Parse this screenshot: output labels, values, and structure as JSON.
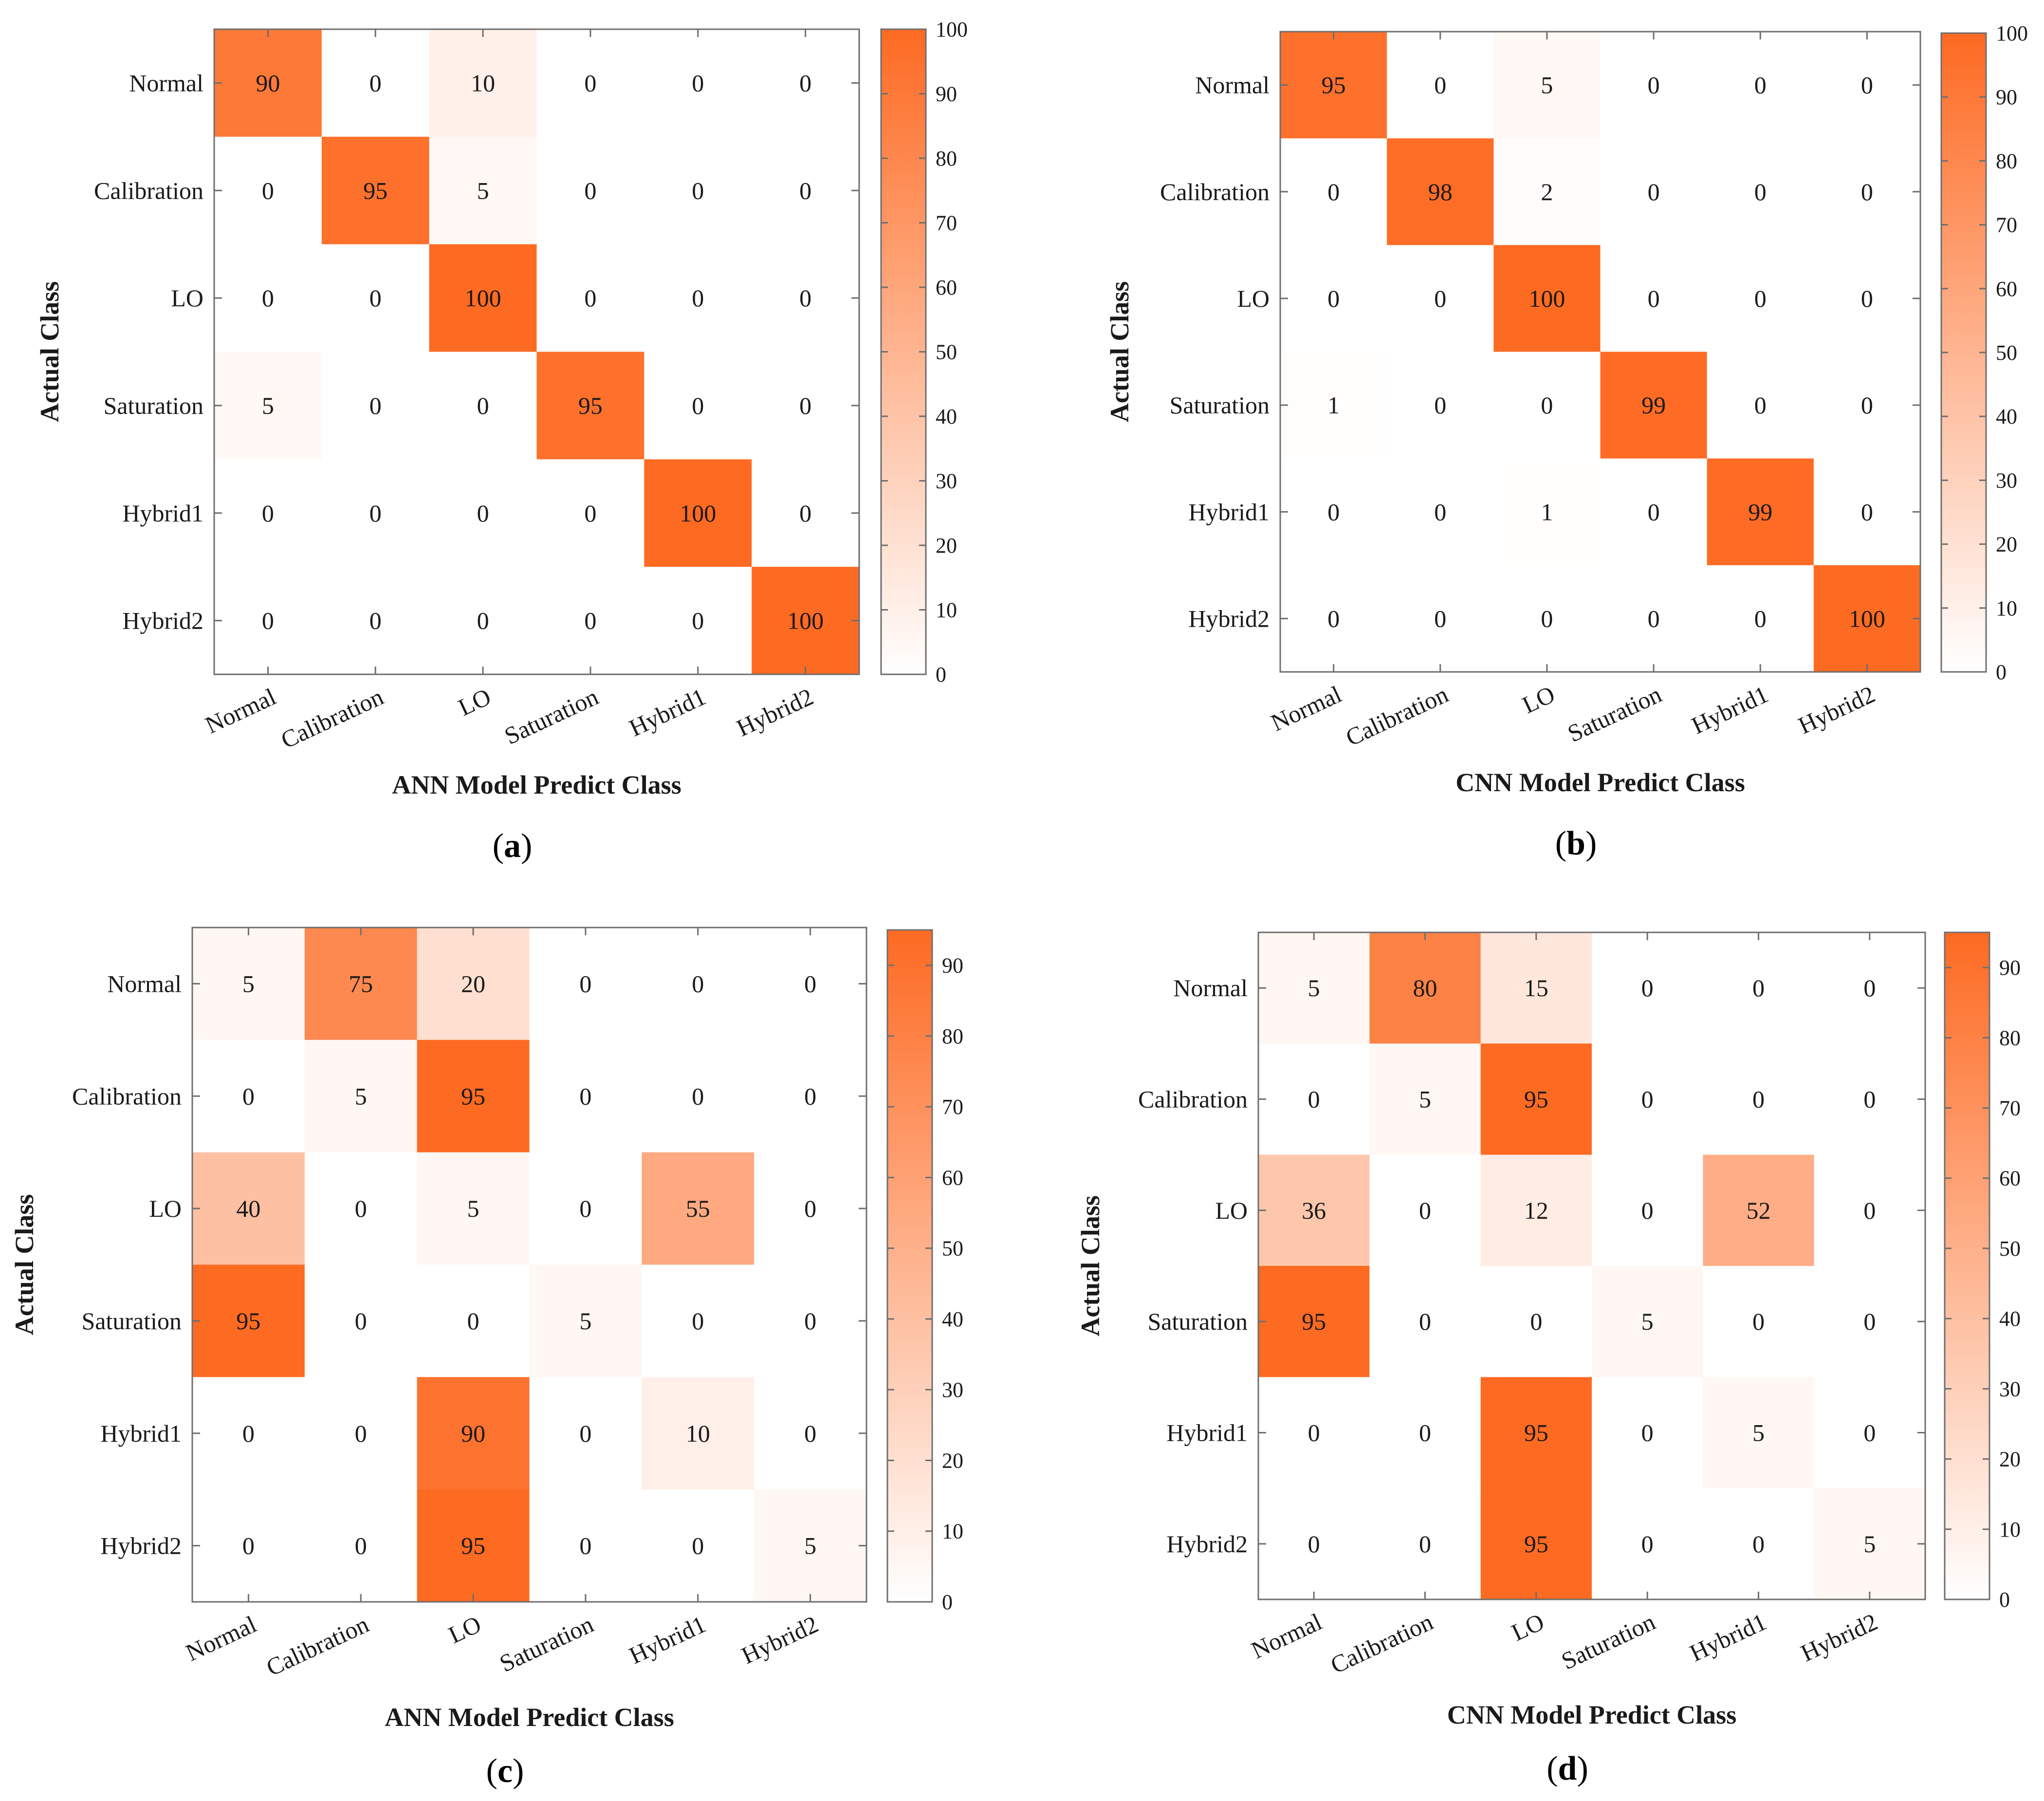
{
  "colors": {
    "max": "#FD6A22",
    "min": "#FFFFFF",
    "frame": "#6E6E6E",
    "text": "#1A1A1A"
  },
  "chart_data": [
    {
      "type": "heatmap",
      "panel": "(a)",
      "panel_letter": "a",
      "xlabel": "ANN Model Predict Class",
      "ylabel": "Actual Class",
      "x_categories": [
        "Normal",
        "Calibration",
        "LO",
        "Saturation",
        "Hybrid1",
        "Hybrid2"
      ],
      "y_categories": [
        "Normal",
        "Calibration",
        "LO",
        "Saturation",
        "Hybrid1",
        "Hybrid2"
      ],
      "values": [
        [
          90,
          0,
          10,
          0,
          0,
          0
        ],
        [
          0,
          95,
          5,
          0,
          0,
          0
        ],
        [
          0,
          0,
          100,
          0,
          0,
          0
        ],
        [
          5,
          0,
          0,
          95,
          0,
          0
        ],
        [
          0,
          0,
          0,
          0,
          100,
          0
        ],
        [
          0,
          0,
          0,
          0,
          0,
          100
        ]
      ],
      "colorbar": {
        "min": 0,
        "max": 100,
        "ticks": [
          0,
          10,
          20,
          30,
          40,
          50,
          60,
          70,
          80,
          90,
          100
        ]
      }
    },
    {
      "type": "heatmap",
      "panel": "(b)",
      "panel_letter": "b",
      "xlabel": "CNN Model Predict Class",
      "ylabel": "Actual Class",
      "x_categories": [
        "Normal",
        "Calibration",
        "LO",
        "Saturation",
        "Hybrid1",
        "Hybrid2"
      ],
      "y_categories": [
        "Normal",
        "Calibration",
        "LO",
        "Saturation",
        "Hybrid1",
        "Hybrid2"
      ],
      "values": [
        [
          95,
          0,
          5,
          0,
          0,
          0
        ],
        [
          0,
          98,
          2,
          0,
          0,
          0
        ],
        [
          0,
          0,
          100,
          0,
          0,
          0
        ],
        [
          1,
          0,
          0,
          99,
          0,
          0
        ],
        [
          0,
          0,
          1,
          0,
          99,
          0
        ],
        [
          0,
          0,
          0,
          0,
          0,
          100
        ]
      ],
      "colorbar": {
        "min": 0,
        "max": 100,
        "ticks": [
          0,
          10,
          20,
          30,
          40,
          50,
          60,
          70,
          80,
          90,
          100
        ]
      }
    },
    {
      "type": "heatmap",
      "panel": "(c)",
      "panel_letter": "c",
      "xlabel": "ANN Model Predict Class",
      "ylabel": "Actual Class",
      "x_categories": [
        "Normal",
        "Calibration",
        "LO",
        "Saturation",
        "Hybrid1",
        "Hybrid2"
      ],
      "y_categories": [
        "Normal",
        "Calibration",
        "LO",
        "Saturation",
        "Hybrid1",
        "Hybrid2"
      ],
      "values": [
        [
          5,
          75,
          20,
          0,
          0,
          0
        ],
        [
          0,
          5,
          95,
          0,
          0,
          0
        ],
        [
          40,
          0,
          5,
          0,
          55,
          0
        ],
        [
          95,
          0,
          0,
          5,
          0,
          0
        ],
        [
          0,
          0,
          90,
          0,
          10,
          0
        ],
        [
          0,
          0,
          95,
          0,
          0,
          5
        ]
      ],
      "colorbar": {
        "min": 0,
        "max": 95,
        "ticks": [
          0,
          10,
          20,
          30,
          40,
          50,
          60,
          70,
          80,
          90
        ]
      }
    },
    {
      "type": "heatmap",
      "panel": "(d)",
      "panel_letter": "d",
      "xlabel": "CNN Model Predict Class",
      "ylabel": "Actual Class",
      "x_categories": [
        "Normal",
        "Calibration",
        "LO",
        "Saturation",
        "Hybrid1",
        "Hybrid2"
      ],
      "y_categories": [
        "Normal",
        "Calibration",
        "LO",
        "Saturation",
        "Hybrid1",
        "Hybrid2"
      ],
      "values": [
        [
          5,
          80,
          15,
          0,
          0,
          0
        ],
        [
          0,
          5,
          95,
          0,
          0,
          0
        ],
        [
          36,
          0,
          12,
          0,
          52,
          0
        ],
        [
          95,
          0,
          0,
          5,
          0,
          0
        ],
        [
          0,
          0,
          95,
          0,
          5,
          0
        ],
        [
          0,
          0,
          95,
          0,
          0,
          5
        ]
      ],
      "colorbar": {
        "min": 0,
        "max": 95,
        "ticks": [
          0,
          10,
          20,
          30,
          40,
          50,
          60,
          70,
          80,
          90
        ]
      }
    }
  ]
}
